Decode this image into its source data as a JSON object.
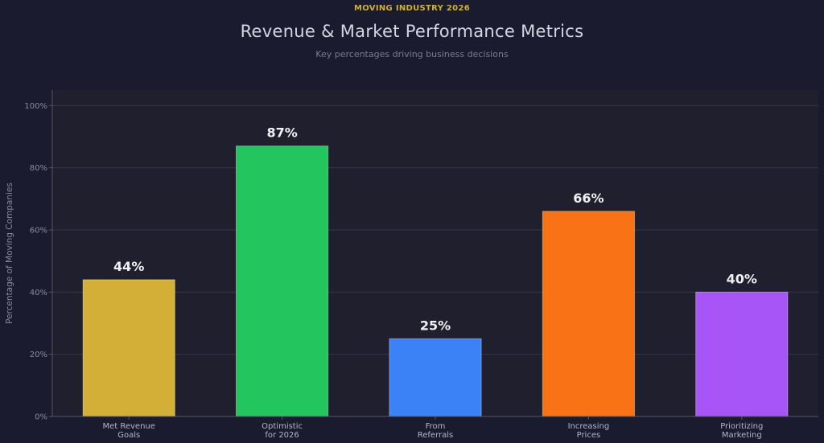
{
  "header": {
    "eyebrow": "MOVING INDUSTRY 2026",
    "title": "Revenue & Market Performance Metrics",
    "subtitle": "Key percentages driving business decisions"
  },
  "colors": {
    "background": "#1a1b2e",
    "plot_background": "#1f1f2d",
    "eyebrow": "#d4af37",
    "grid": "#35364a",
    "axis": "#55566a",
    "tick_text": "#8a8a9a",
    "category_text": "#b4b4c4",
    "value_text": "#f0f0f5"
  },
  "chart_data": {
    "type": "bar",
    "categories": [
      [
        "Met Revenue",
        "Goals"
      ],
      [
        "Optimistic",
        "for 2026"
      ],
      [
        "From",
        "Referrals"
      ],
      [
        "Increasing",
        "Prices"
      ],
      [
        "Prioritizing",
        "Marketing"
      ]
    ],
    "values": [
      44,
      87,
      25,
      66,
      40
    ],
    "value_labels": [
      "44%",
      "87%",
      "25%",
      "66%",
      "40%"
    ],
    "bar_colors": [
      "#d4af37",
      "#22c55e",
      "#3b82f6",
      "#f97316",
      "#a855f7"
    ],
    "ylabel": "Percentage of Moving Companies",
    "ylim": [
      0,
      105
    ],
    "yticks": [
      0,
      20,
      40,
      60,
      80,
      100
    ],
    "ytick_labels": [
      "0%",
      "20%",
      "40%",
      "60%",
      "80%",
      "100%"
    ],
    "grid": true,
    "legend": "none"
  }
}
